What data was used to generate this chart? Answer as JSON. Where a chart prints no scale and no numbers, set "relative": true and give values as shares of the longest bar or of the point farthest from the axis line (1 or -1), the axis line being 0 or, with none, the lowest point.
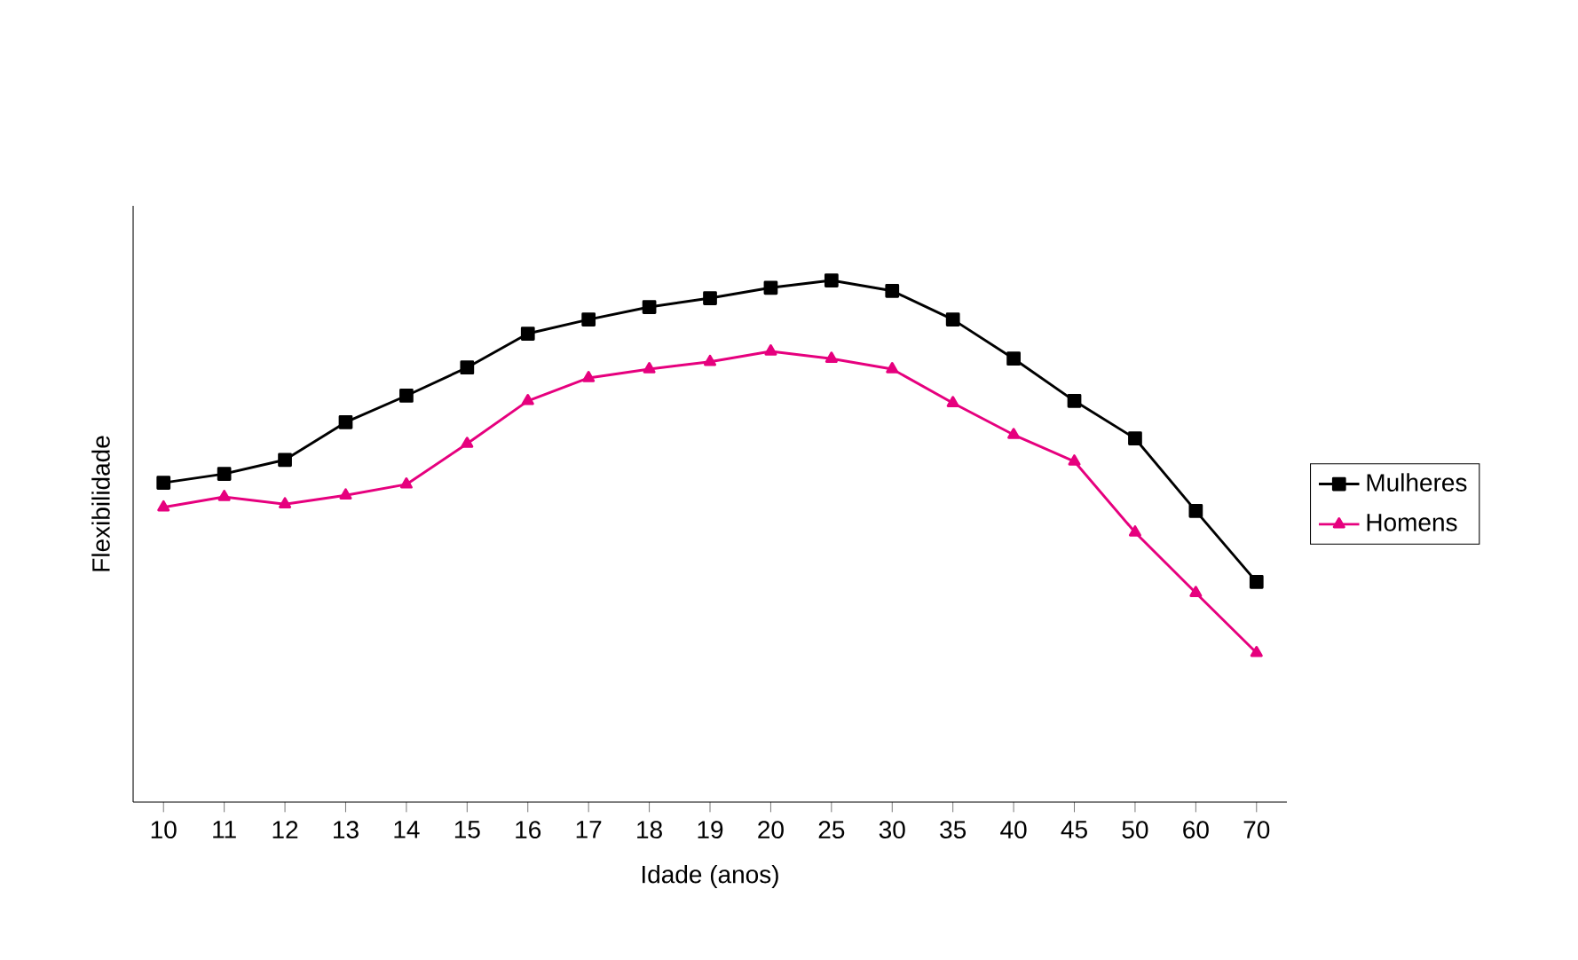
{
  "chart_data": {
    "type": "line",
    "relative": true,
    "xlabel": "Idade (anos)",
    "ylabel": "Flexibilidade",
    "legend": "right",
    "categories": [
      "10",
      "11",
      "12",
      "13",
      "14",
      "15",
      "16",
      "17",
      "18",
      "19",
      "20",
      "25",
      "30",
      "35",
      "40",
      "45",
      "50",
      "60",
      "70"
    ],
    "series": [
      {
        "name": "Mulheres",
        "color": "#000000",
        "marker": "square",
        "values": [
          0.612,
          0.629,
          0.656,
          0.728,
          0.779,
          0.833,
          0.898,
          0.925,
          0.949,
          0.966,
          0.986,
          1,
          0.98,
          0.925,
          0.85,
          0.769,
          0.697,
          0.558,
          0.422
        ]
      },
      {
        "name": "Homens",
        "color": "#e6007e",
        "marker": "triangle",
        "values": [
          0.565,
          0.585,
          0.571,
          0.588,
          0.609,
          0.687,
          0.769,
          0.813,
          0.83,
          0.844,
          0.864,
          0.85,
          0.83,
          0.765,
          0.704,
          0.653,
          0.517,
          0.401,
          0.286
        ]
      }
    ]
  }
}
